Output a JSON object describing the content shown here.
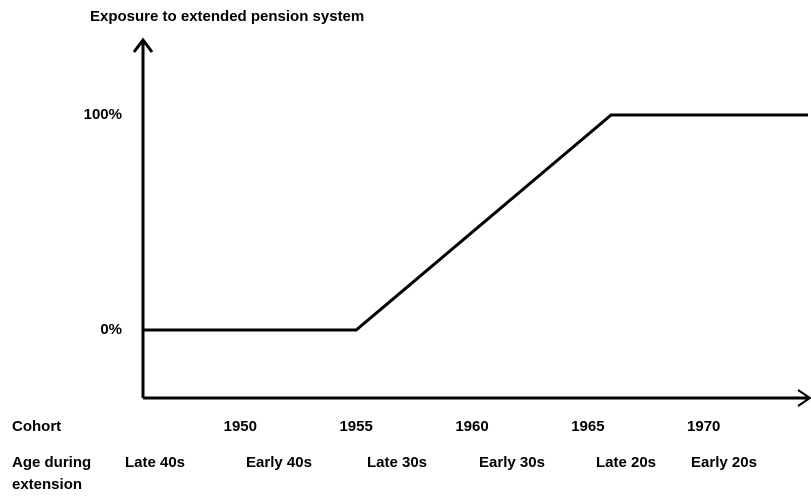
{
  "chart_data": {
    "type": "line",
    "title": "Exposure to extended pension system",
    "x": [
      1945.8,
      1955,
      1966,
      1974.5
    ],
    "values": [
      0,
      0,
      100,
      100
    ],
    "color": "#000000",
    "xlim": [
      1945.8,
      1974.5
    ],
    "ylim": [
      -31.6,
      134.9
    ],
    "xticks": [
      1950,
      1955,
      1960,
      1965,
      1970
    ],
    "yticks": [
      {
        "value": 0,
        "label": "0%"
      },
      {
        "value": 100,
        "label": "100%"
      }
    ],
    "x_axis_label": "Cohort",
    "age_row_label": "Age during extension",
    "age_labels": [
      "Late 40s",
      "Early 40s",
      "Late 30s",
      "Early 30s",
      "Late 20s",
      "Early 20s"
    ]
  }
}
